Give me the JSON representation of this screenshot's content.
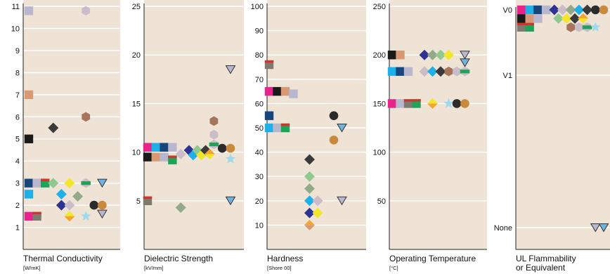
{
  "palette": {
    "pink": "#e8248a",
    "cyan": "#1fb0e8",
    "navy": "#17467c",
    "lilac": "#b9b6cf",
    "indigo": "#2e3391",
    "mint": "#8fc98f",
    "yellow": "#f3e62a",
    "darkgray": "#3a3a3a",
    "ltblue": "#9ed9ee",
    "brown": "#a6745a",
    "charcoal": "#2b2b2b",
    "ochre": "#c98a3e",
    "tan": "#d79a74",
    "black": "#1a1a1a",
    "olive": "#7d7a70",
    "red": "#d0342c",
    "green": "#1fa358",
    "sage": "#93aa8a",
    "orange": "#f4a530",
    "mauve": "#cbbcc9",
    "triblue": "#6fb3de"
  },
  "chart_data": [
    {
      "type": "scatter",
      "title": "",
      "xlabel": "Thermal Conductivity",
      "xunit": "[W/mK]",
      "ylabel": "",
      "ylim": [
        0,
        11
      ],
      "yticks": [
        "1",
        "2",
        "3",
        "4",
        "5",
        "6",
        "7",
        "8",
        "9",
        "10",
        "11"
      ],
      "grid": true,
      "points": [
        {
          "x": 1,
          "y": 10.8,
          "shape": "square",
          "color": "lilac"
        },
        {
          "x": 1,
          "y": 7.0,
          "shape": "square",
          "color": "tan"
        },
        {
          "x": 1,
          "y": 5.0,
          "shape": "square",
          "color": "black"
        },
        {
          "x": 1,
          "y": 3.0,
          "shape": "square",
          "color": "navy"
        },
        {
          "x": 1,
          "y": 2.5,
          "shape": "square",
          "color": "cyan"
        },
        {
          "x": 1,
          "y": 1.5,
          "shape": "square",
          "color": "pink"
        },
        {
          "x": 2,
          "y": 3.0,
          "shape": "square",
          "color": "lilac"
        },
        {
          "x": 2,
          "y": 1.5,
          "shape": "split-square",
          "color": "red",
          "color2": "olive"
        },
        {
          "x": 3,
          "y": 3.0,
          "shape": "split-square",
          "color": "red",
          "color2": "green"
        },
        {
          "x": 4,
          "y": 5.5,
          "shape": "diamond",
          "color": "darkgray"
        },
        {
          "x": 4,
          "y": 3.0,
          "shape": "diamond",
          "color": "mint"
        },
        {
          "x": 5,
          "y": 2.5,
          "shape": "diamond",
          "color": "cyan"
        },
        {
          "x": 5,
          "y": 2.0,
          "shape": "diamond",
          "color": "indigo"
        },
        {
          "x": 6,
          "y": 3.0,
          "shape": "diamond",
          "color": "yellow"
        },
        {
          "x": 6,
          "y": 2.0,
          "shape": "diamond",
          "color": "mauve"
        },
        {
          "x": 6,
          "y": 1.5,
          "shape": "split-diamond",
          "color": "yellow",
          "color2": "orange"
        },
        {
          "x": 7,
          "y": 2.4,
          "shape": "diamond",
          "color": "sage"
        },
        {
          "x": 8,
          "y": 10.8,
          "shape": "hexagon",
          "color": "mauve"
        },
        {
          "x": 8,
          "y": 6.0,
          "shape": "hexagon",
          "color": "brown"
        },
        {
          "x": 8,
          "y": 3.0,
          "shape": "split-hex",
          "color": "green",
          "color2": "mauve"
        },
        {
          "x": 8,
          "y": 1.5,
          "shape": "star",
          "color": "ltblue"
        },
        {
          "x": 9,
          "y": 2.0,
          "shape": "circle",
          "color": "charcoal"
        },
        {
          "x": 10,
          "y": 3.0,
          "shape": "triangle",
          "color": "triblue"
        },
        {
          "x": 10,
          "y": 2.0,
          "shape": "circle",
          "color": "ochre"
        },
        {
          "x": 10,
          "y": 1.6,
          "shape": "triangle",
          "color": "lilac"
        }
      ]
    },
    {
      "type": "scatter",
      "title": "",
      "xlabel": "Dielectric Strength",
      "xunit": "[kV/mm]",
      "ylabel": "",
      "ylim": [
        0,
        25
      ],
      "yticks": [
        "5",
        "10",
        "15",
        "20",
        "25"
      ],
      "grid": true,
      "points": [
        {
          "x": 1,
          "y": 10.5,
          "shape": "square",
          "color": "pink"
        },
        {
          "x": 1,
          "y": 9.5,
          "shape": "square",
          "color": "black"
        },
        {
          "x": 1,
          "y": 5.0,
          "shape": "split-square",
          "color": "red",
          "color2": "olive"
        },
        {
          "x": 2,
          "y": 10.5,
          "shape": "square",
          "color": "cyan"
        },
        {
          "x": 2,
          "y": 9.5,
          "shape": "square",
          "color": "tan"
        },
        {
          "x": 3,
          "y": 10.5,
          "shape": "square",
          "color": "navy"
        },
        {
          "x": 3,
          "y": 9.5,
          "shape": "square",
          "color": "lilac"
        },
        {
          "x": 4,
          "y": 10.5,
          "shape": "square",
          "color": "lilac"
        },
        {
          "x": 4,
          "y": 9.2,
          "shape": "split-square",
          "color": "red",
          "color2": "green"
        },
        {
          "x": 5,
          "y": 9.8,
          "shape": "diamond",
          "color": "mauve"
        },
        {
          "x": 5,
          "y": 4.3,
          "shape": "diamond",
          "color": "sage"
        },
        {
          "x": 6,
          "y": 10.2,
          "shape": "diamond",
          "color": "indigo"
        },
        {
          "x": 6.5,
          "y": 9.7,
          "shape": "diamond",
          "color": "cyan"
        },
        {
          "x": 7,
          "y": 10.2,
          "shape": "diamond",
          "color": "mint"
        },
        {
          "x": 7.5,
          "y": 9.7,
          "shape": "diamond",
          "color": "yellow"
        },
        {
          "x": 8,
          "y": 10.2,
          "shape": "diamond",
          "color": "darkgray"
        },
        {
          "x": 8.5,
          "y": 9.8,
          "shape": "split-diamond",
          "color": "orange",
          "color2": "yellow"
        },
        {
          "x": 9,
          "y": 13.2,
          "shape": "hexagon",
          "color": "brown"
        },
        {
          "x": 9,
          "y": 11.8,
          "shape": "hexagon",
          "color": "mauve"
        },
        {
          "x": 9,
          "y": 10.8,
          "shape": "split-hex",
          "color": "green",
          "color2": "mauve"
        },
        {
          "x": 10,
          "y": 10.4,
          "shape": "circle",
          "color": "charcoal"
        },
        {
          "x": 11,
          "y": 10.4,
          "shape": "circle",
          "color": "ochre"
        },
        {
          "x": 11,
          "y": 9.3,
          "shape": "star",
          "color": "ltblue"
        },
        {
          "x": 11,
          "y": 18.5,
          "shape": "triangle",
          "color": "lilac"
        },
        {
          "x": 11,
          "y": 5.0,
          "shape": "triangle",
          "color": "triblue"
        }
      ]
    },
    {
      "type": "scatter",
      "title": "",
      "xlabel": "Hardness",
      "xunit": "[Shore 00]",
      "ylabel": "",
      "ylim": [
        0,
        100
      ],
      "yticks": [
        "10",
        "20",
        "30",
        "40",
        "50",
        "60",
        "70",
        "80",
        "90",
        "100"
      ],
      "grid": true,
      "points": [
        {
          "x": 1,
          "y": 76,
          "shape": "split-square",
          "color": "red",
          "color2": "olive"
        },
        {
          "x": 1,
          "y": 65,
          "shape": "square",
          "color": "pink"
        },
        {
          "x": 1,
          "y": 55,
          "shape": "square",
          "color": "navy"
        },
        {
          "x": 1,
          "y": 50,
          "shape": "square",
          "color": "cyan"
        },
        {
          "x": 2,
          "y": 65,
          "shape": "square",
          "color": "black"
        },
        {
          "x": 2,
          "y": 50,
          "shape": "square",
          "color": "lilac"
        },
        {
          "x": 3,
          "y": 65,
          "shape": "square",
          "color": "tan"
        },
        {
          "x": 3,
          "y": 50,
          "shape": "split-square",
          "color": "red",
          "color2": "green"
        },
        {
          "x": 4,
          "y": 64,
          "shape": "square",
          "color": "lilac"
        },
        {
          "x": 6,
          "y": 37,
          "shape": "diamond",
          "color": "darkgray"
        },
        {
          "x": 6,
          "y": 30,
          "shape": "diamond",
          "color": "mint"
        },
        {
          "x": 6,
          "y": 25,
          "shape": "diamond",
          "color": "sage"
        },
        {
          "x": 6,
          "y": 20,
          "shape": "diamond",
          "color": "cyan"
        },
        {
          "x": 6,
          "y": 15,
          "shape": "diamond",
          "color": "indigo"
        },
        {
          "x": 6,
          "y": 10,
          "shape": "split-diamond",
          "color": "orange",
          "color2": "tan"
        },
        {
          "x": 7,
          "y": 20,
          "shape": "diamond",
          "color": "mauve"
        },
        {
          "x": 7,
          "y": 15,
          "shape": "diamond",
          "color": "yellow"
        },
        {
          "x": 9,
          "y": 55,
          "shape": "circle",
          "color": "charcoal"
        },
        {
          "x": 9,
          "y": 45,
          "shape": "circle",
          "color": "ochre"
        },
        {
          "x": 10,
          "y": 50,
          "shape": "triangle",
          "color": "triblue"
        },
        {
          "x": 10,
          "y": 20,
          "shape": "triangle",
          "color": "lilac"
        }
      ]
    },
    {
      "type": "scatter",
      "title": "",
      "xlabel": "Operating Temperature",
      "xunit": "[°C]",
      "ylabel": "",
      "ylim": [
        0,
        250
      ],
      "yticks": [
        "50",
        "100",
        "150",
        "200",
        "250"
      ],
      "grid": true,
      "points": [
        {
          "x": 1,
          "y": 200,
          "shape": "square",
          "color": "black"
        },
        {
          "x": 1,
          "y": 183,
          "shape": "square",
          "color": "cyan"
        },
        {
          "x": 1,
          "y": 150,
          "shape": "square",
          "color": "pink"
        },
        {
          "x": 2,
          "y": 200,
          "shape": "square",
          "color": "tan"
        },
        {
          "x": 2,
          "y": 183,
          "shape": "square",
          "color": "navy"
        },
        {
          "x": 2,
          "y": 150,
          "shape": "square",
          "color": "lilac"
        },
        {
          "x": 3,
          "y": 183,
          "shape": "square",
          "color": "lilac"
        },
        {
          "x": 3,
          "y": 150,
          "shape": "split-square",
          "color": "red",
          "color2": "olive"
        },
        {
          "x": 4,
          "y": 150,
          "shape": "split-square",
          "color": "red",
          "color2": "green"
        },
        {
          "x": 5,
          "y": 200,
          "shape": "diamond",
          "color": "indigo"
        },
        {
          "x": 5,
          "y": 183,
          "shape": "diamond",
          "color": "mauve"
        },
        {
          "x": 6,
          "y": 200,
          "shape": "diamond",
          "color": "sage"
        },
        {
          "x": 6,
          "y": 183,
          "shape": "diamond",
          "color": "cyan"
        },
        {
          "x": 6,
          "y": 150,
          "shape": "split-diamond",
          "color": "yellow",
          "color2": "orange"
        },
        {
          "x": 7,
          "y": 200,
          "shape": "diamond",
          "color": "mint"
        },
        {
          "x": 7,
          "y": 183,
          "shape": "diamond",
          "color": "darkgray"
        },
        {
          "x": 8,
          "y": 200,
          "shape": "diamond",
          "color": "yellow"
        },
        {
          "x": 8,
          "y": 183,
          "shape": "hexagon",
          "color": "brown"
        },
        {
          "x": 8,
          "y": 150,
          "shape": "star",
          "color": "ltblue"
        },
        {
          "x": 9,
          "y": 183,
          "shape": "hexagon",
          "color": "mauve"
        },
        {
          "x": 9,
          "y": 150,
          "shape": "circle",
          "color": "charcoal"
        },
        {
          "x": 10,
          "y": 200,
          "shape": "triangle",
          "color": "lilac"
        },
        {
          "x": 10,
          "y": 192,
          "shape": "triangle",
          "color": "triblue"
        },
        {
          "x": 10,
          "y": 183,
          "shape": "split-hex",
          "color": "green",
          "color2": "mauve"
        },
        {
          "x": 10,
          "y": 150,
          "shape": "circle",
          "color": "ochre"
        }
      ]
    },
    {
      "type": "scatter",
      "title": "",
      "xlabel": "UL Flammability",
      "xlabel2": "or Equivalent",
      "xunit": "",
      "ylabel": "",
      "ylim": [
        0,
        11
      ],
      "ycategories": [
        {
          "label": "V0",
          "value": 11
        },
        {
          "label": "V1",
          "value": 8
        },
        {
          "label": "None",
          "value": 1
        }
      ],
      "grid": true,
      "points": [
        {
          "x": 1,
          "y": 11,
          "shape": "square",
          "color": "pink"
        },
        {
          "x": 1,
          "y": 10.6,
          "shape": "square",
          "color": "black"
        },
        {
          "x": 1,
          "y": 10.2,
          "shape": "split-square",
          "color": "red",
          "color2": "olive"
        },
        {
          "x": 2,
          "y": 11,
          "shape": "square",
          "color": "cyan"
        },
        {
          "x": 2,
          "y": 10.6,
          "shape": "square",
          "color": "tan"
        },
        {
          "x": 2,
          "y": 10.2,
          "shape": "split-square",
          "color": "red",
          "color2": "green"
        },
        {
          "x": 3,
          "y": 11,
          "shape": "square",
          "color": "navy"
        },
        {
          "x": 3,
          "y": 10.6,
          "shape": "square",
          "color": "lilac"
        },
        {
          "x": 4,
          "y": 11,
          "shape": "square",
          "color": "lilac"
        },
        {
          "x": 5,
          "y": 11,
          "shape": "diamond",
          "color": "indigo"
        },
        {
          "x": 5.5,
          "y": 10.6,
          "shape": "diamond",
          "color": "mint"
        },
        {
          "x": 6,
          "y": 11,
          "shape": "diamond",
          "color": "mauve"
        },
        {
          "x": 6.5,
          "y": 10.6,
          "shape": "diamond",
          "color": "yellow"
        },
        {
          "x": 7,
          "y": 11,
          "shape": "diamond",
          "color": "sage"
        },
        {
          "x": 7.5,
          "y": 10.6,
          "shape": "diamond",
          "color": "darkgray"
        },
        {
          "x": 7,
          "y": 10.2,
          "shape": "hexagon",
          "color": "brown"
        },
        {
          "x": 8,
          "y": 11,
          "shape": "diamond",
          "color": "cyan"
        },
        {
          "x": 8,
          "y": 10.2,
          "shape": "hexagon",
          "color": "mauve"
        },
        {
          "x": 8.5,
          "y": 10.6,
          "shape": "split-diamond",
          "color": "orange",
          "color2": "yellow"
        },
        {
          "x": 9,
          "y": 11,
          "shape": "diamond",
          "color": "darkgray"
        },
        {
          "x": 9,
          "y": 10.2,
          "shape": "split-hex",
          "color": "green",
          "color2": "mauve"
        },
        {
          "x": 10,
          "y": 11,
          "shape": "circle",
          "color": "charcoal"
        },
        {
          "x": 10,
          "y": 10.2,
          "shape": "star",
          "color": "ltblue"
        },
        {
          "x": 11,
          "y": 11,
          "shape": "circle",
          "color": "ochre"
        },
        {
          "x": 10,
          "y": 1,
          "shape": "triangle",
          "color": "lilac"
        },
        {
          "x": 11,
          "y": 1,
          "shape": "triangle",
          "color": "triblue"
        }
      ]
    }
  ]
}
